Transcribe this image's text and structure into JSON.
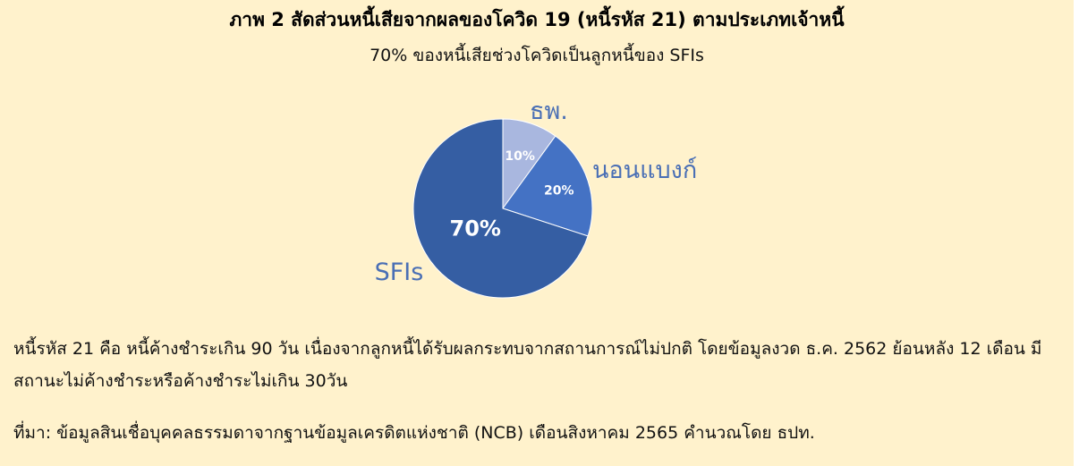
{
  "title": "ภาพ 2 สัดส่วนหนี้เสียจากผลของโควิด 19 (หนี้รหัส 21) ตามประเภทเจ้าหนี้",
  "subtitle": "70% ของหนี้เสียช่วงโควิดเป็นลูกหนี้ของ SFIs",
  "chart_data": {
    "type": "pie",
    "title": "ภาพ 2 สัดส่วนหนี้เสียจากผลของโควิด 19 (หนี้รหัส 21) ตามประเภทเจ้าหนี้",
    "slices": [
      {
        "label": "ธพ.",
        "value": 10,
        "value_label": "10%",
        "color": "#a9b7df"
      },
      {
        "label": "นอนแบงก์",
        "value": 20,
        "value_label": "20%",
        "color": "#4472c4"
      },
      {
        "label": "SFIs",
        "value": 70,
        "value_label": "70%",
        "color": "#355ea3"
      }
    ],
    "label_color": "#4a6fb5"
  },
  "notes": {
    "definition": "หนี้รหัส 21 คือ หนี้ค้างชำระเกิน 90 วัน เนื่องจากลูกหนี้ได้รับผลกระทบจากสถานการณ์ไม่ปกติ โดยข้อมูลงวด ธ.ค. 2562 ย้อนหลัง 12 เดือน มีสถานะไม่ค้างชำระหรือค้างชำระไม่เกิน 30วัน",
    "source": "ที่มา: ข้อมูลสินเชื่อบุคคลธรรมดาจากฐานข้อมูลเครดิตแห่งชาติ (NCB) เดือนสิงหาคม 2565 คำนวณโดย ธปท."
  }
}
